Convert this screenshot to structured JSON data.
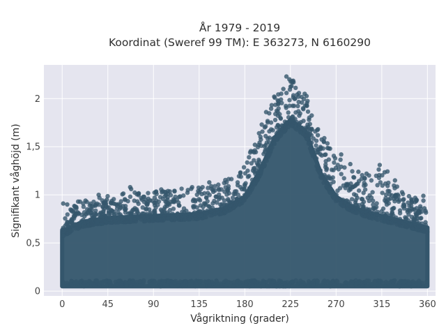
{
  "chart_data": {
    "type": "scatter",
    "title_line1": "År 1979 - 2019",
    "title_line2": "Koordinat (Sweref 99 TM): E 363273, N 6160290",
    "xlabel": "Vågriktning (grader)",
    "ylabel": "Signifikant våghöjd (m)",
    "xlim": [
      -18,
      368
    ],
    "ylim": [
      -0.05,
      2.35
    ],
    "xticks": [
      0,
      45,
      90,
      135,
      180,
      225,
      270,
      315,
      360
    ],
    "xtick_labels": [
      "0",
      "45",
      "90",
      "135",
      "180",
      "225",
      "270",
      "315",
      "360"
    ],
    "yticks": [
      0,
      0.5,
      1,
      1.5,
      2
    ],
    "ytick_labels": [
      "0",
      "0,5",
      "1",
      "1,5",
      "2"
    ],
    "grid": true,
    "background_color": "#e5e5ef",
    "marker_color": "#34566c",
    "envelope": {
      "description_direction_deg": [
        0,
        20,
        45,
        90,
        135,
        160,
        180,
        195,
        210,
        225,
        240,
        255,
        270,
        285,
        300,
        315,
        330,
        345,
        360
      ],
      "upper_bulk_height_m": [
        0.62,
        0.72,
        0.76,
        0.78,
        0.8,
        0.86,
        0.98,
        1.25,
        1.6,
        1.78,
        1.66,
        1.22,
        0.98,
        0.88,
        0.82,
        0.78,
        0.74,
        0.7,
        0.66
      ],
      "upper_outlier_height_m": [
        0.92,
        0.94,
        1.0,
        1.05,
        1.1,
        1.15,
        1.3,
        1.7,
        2.05,
        2.22,
        2.05,
        1.65,
        1.42,
        1.25,
        1.2,
        1.32,
        1.12,
        0.98,
        0.96
      ],
      "lower_height_m": 0.05
    },
    "outliers": [
      {
        "x": 1,
        "y": 0.91
      },
      {
        "x": 5,
        "y": 0.9
      },
      {
        "x": 14,
        "y": 0.87
      },
      {
        "x": 23,
        "y": 0.94
      },
      {
        "x": 36,
        "y": 1.0
      },
      {
        "x": 44,
        "y": 0.95
      },
      {
        "x": 67,
        "y": 1.08
      },
      {
        "x": 68,
        "y": 1.06
      },
      {
        "x": 80,
        "y": 0.98
      },
      {
        "x": 101,
        "y": 1.03
      },
      {
        "x": 124,
        "y": 1.05
      },
      {
        "x": 145,
        "y": 1.13
      },
      {
        "x": 147,
        "y": 1.09
      },
      {
        "x": 163,
        "y": 1.05
      },
      {
        "x": 173,
        "y": 1.1
      },
      {
        "x": 190,
        "y": 1.52
      },
      {
        "x": 201,
        "y": 1.86
      },
      {
        "x": 209,
        "y": 2.02
      },
      {
        "x": 213,
        "y": 1.95
      },
      {
        "x": 218,
        "y": 2.1
      },
      {
        "x": 221,
        "y": 2.23
      },
      {
        "x": 224,
        "y": 2.2
      },
      {
        "x": 226,
        "y": 2.13
      },
      {
        "x": 228,
        "y": 2.17
      },
      {
        "x": 233,
        "y": 2.02
      },
      {
        "x": 239,
        "y": 2.05
      },
      {
        "x": 246,
        "y": 1.68
      },
      {
        "x": 252,
        "y": 1.62
      },
      {
        "x": 258,
        "y": 1.55
      },
      {
        "x": 264,
        "y": 1.48
      },
      {
        "x": 269,
        "y": 1.38
      },
      {
        "x": 275,
        "y": 1.42
      },
      {
        "x": 284,
        "y": 1.32
      },
      {
        "x": 292,
        "y": 1.24
      },
      {
        "x": 300,
        "y": 1.22
      },
      {
        "x": 313,
        "y": 1.31
      },
      {
        "x": 321,
        "y": 1.04
      },
      {
        "x": 328,
        "y": 1.15
      },
      {
        "x": 336,
        "y": 0.88
      },
      {
        "x": 349,
        "y": 0.95
      },
      {
        "x": 356,
        "y": 0.99
      },
      {
        "x": 357,
        "y": 0.86
      }
    ]
  }
}
